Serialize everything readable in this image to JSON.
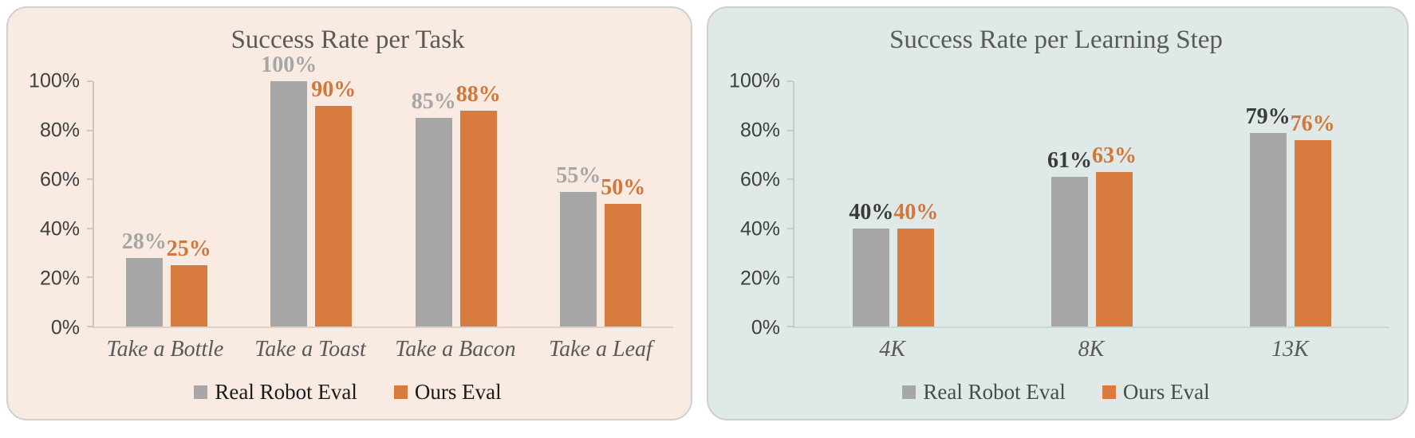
{
  "page": {
    "background": "#ffffff"
  },
  "chart_data": [
    {
      "type": "bar",
      "title": "Success Rate per Task",
      "categories": [
        "Take a Bottle",
        "Take a Toast",
        "Take a Bacon",
        "Take a Leaf"
      ],
      "series": [
        {
          "name": "Real Robot Eval",
          "color": "#a7a7a7",
          "label_color": "#a6a6a6",
          "values": [
            28,
            100,
            85,
            55
          ],
          "labels": [
            "28%",
            "100%",
            "85%",
            "55%"
          ]
        },
        {
          "name": "Ours Eval",
          "color": "#d87b3e",
          "label_color": "#d2763a",
          "values": [
            25,
            90,
            88,
            50
          ],
          "labels": [
            "25%",
            "90%",
            "88%",
            "50%"
          ]
        }
      ],
      "ylim": [
        0,
        100
      ],
      "yticks": [
        0,
        20,
        40,
        60,
        80,
        100
      ],
      "ytick_labels": [
        "0%",
        "20%",
        "40%",
        "60%",
        "80%",
        "100%"
      ],
      "grid": false,
      "legend_position": "bottom",
      "panel_bg": "#f9ebe2",
      "panel_border": "#cfcfcf",
      "title_color": "#595959",
      "axis_color": "#cfc5bd",
      "baseline_color": "#ddd3cb",
      "tick_label_color": "#3f3f3f",
      "category_color": "#595959",
      "legend_text_color": "#1a1a1a"
    },
    {
      "type": "bar",
      "title": "Success Rate per Learning Step",
      "categories": [
        "4K",
        "8K",
        "13K"
      ],
      "series": [
        {
          "name": "Real Robot Eval",
          "color": "#a7a7a7",
          "label_color": "#3a3a3a",
          "values": [
            40,
            61,
            79
          ],
          "labels": [
            "40%",
            "61%",
            "79%"
          ]
        },
        {
          "name": "Ours Eval",
          "color": "#d87b3e",
          "label_color": "#d2763a",
          "values": [
            40,
            63,
            76
          ],
          "labels": [
            "40%",
            "63%",
            "76%"
          ]
        }
      ],
      "ylim": [
        0,
        100
      ],
      "yticks": [
        0,
        20,
        40,
        60,
        80,
        100
      ],
      "ytick_labels": [
        "0%",
        "20%",
        "40%",
        "60%",
        "80%",
        "100%"
      ],
      "grid": false,
      "legend_position": "bottom",
      "panel_bg": "#dfe9e7",
      "panel_border": "#cfcfcf",
      "title_color": "#595959",
      "axis_color": "#c3cecb",
      "baseline_color": "#cbd7d4",
      "tick_label_color": "#3f3f3f",
      "category_color": "#595959",
      "legend_text_color": "#4a4a4a"
    }
  ]
}
